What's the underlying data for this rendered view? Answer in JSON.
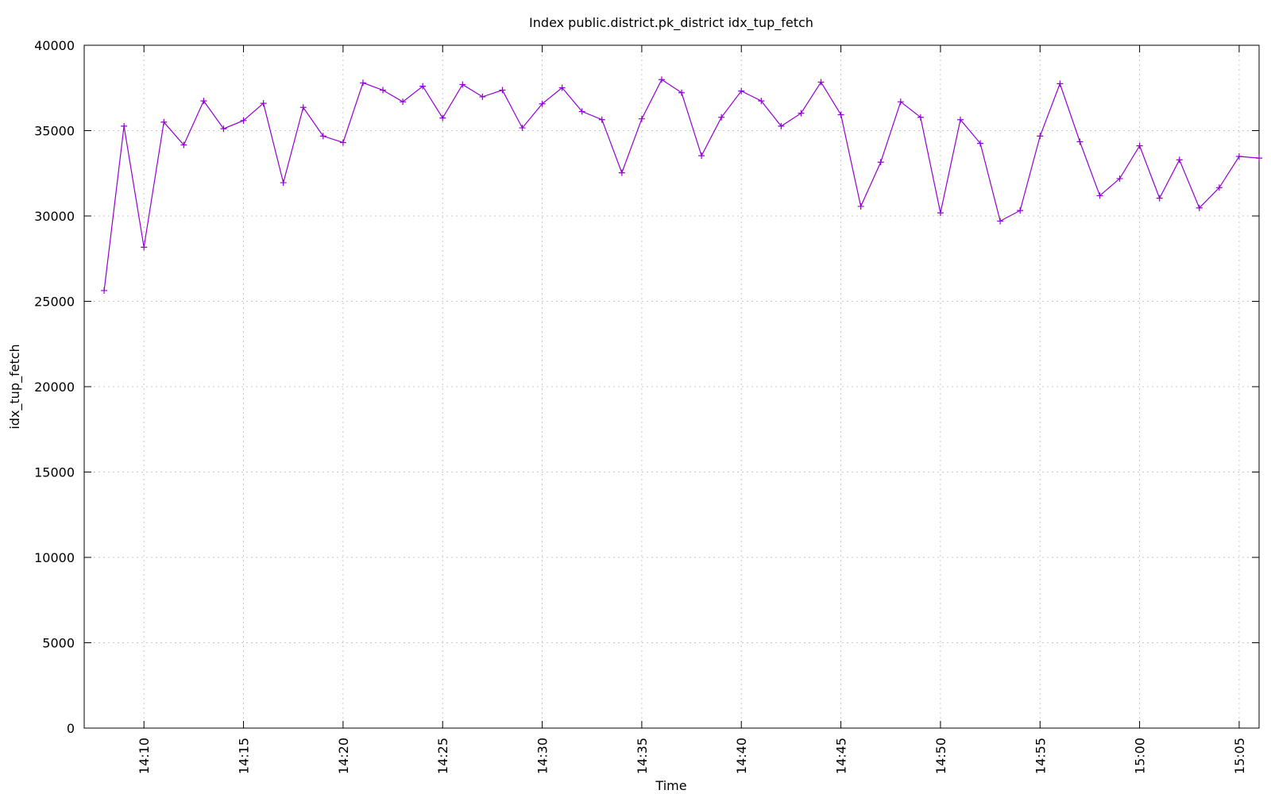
{
  "chart_data": {
    "type": "line",
    "title": "Index public.district.pk_district idx_tup_fetch",
    "x_label": "Time",
    "y_label": "idx_tup_fetch",
    "x": [
      "14:08",
      "14:09",
      "14:10",
      "14:11",
      "14:12",
      "14:13",
      "14:14",
      "14:15",
      "14:16",
      "14:17",
      "14:18",
      "14:19",
      "14:20",
      "14:21",
      "14:22",
      "14:23",
      "14:24",
      "14:25",
      "14:26",
      "14:27",
      "14:28",
      "14:29",
      "14:30",
      "14:31",
      "14:32",
      "14:33",
      "14:34",
      "14:35",
      "14:36",
      "14:37",
      "14:38",
      "14:39",
      "14:40",
      "14:41",
      "14:42",
      "14:43",
      "14:44",
      "14:45",
      "14:46",
      "14:47",
      "14:48",
      "14:49",
      "14:50",
      "14:51",
      "14:52",
      "14:53",
      "14:54",
      "14:55",
      "14:56",
      "14:57",
      "14:58",
      "14:59",
      "15:00",
      "15:01",
      "15:02",
      "15:03",
      "15:04",
      "15:05",
      "15:06"
    ],
    "values": [
      25630,
      35260,
      28170,
      35500,
      34160,
      36740,
      35110,
      35590,
      36600,
      31950,
      36360,
      34680,
      34300,
      37800,
      37370,
      36690,
      37600,
      35740,
      37700,
      36980,
      37370,
      35160,
      36570,
      37510,
      36120,
      35640,
      32530,
      35690,
      37990,
      37220,
      33530,
      35780,
      37320,
      36740,
      35260,
      36020,
      37840,
      35930,
      30560,
      33150,
      36690,
      35780,
      30180,
      35640,
      34250,
      29700,
      30320,
      34680,
      37750,
      34350,
      31190,
      32190,
      34110,
      31040,
      33290,
      30470,
      31660,
      33490,
      33390
    ],
    "color": "#9400d3",
    "xlim": [
      "14:07",
      "15:06"
    ],
    "xticks": [
      "14:10",
      "14:15",
      "14:20",
      "14:25",
      "14:30",
      "14:35",
      "14:40",
      "14:45",
      "14:50",
      "14:55",
      "15:00",
      "15:05"
    ],
    "ylim": [
      0,
      40000
    ],
    "yticks": [
      0,
      5000,
      10000,
      15000,
      20000,
      25000,
      30000,
      35000,
      40000
    ],
    "grid": true
  }
}
